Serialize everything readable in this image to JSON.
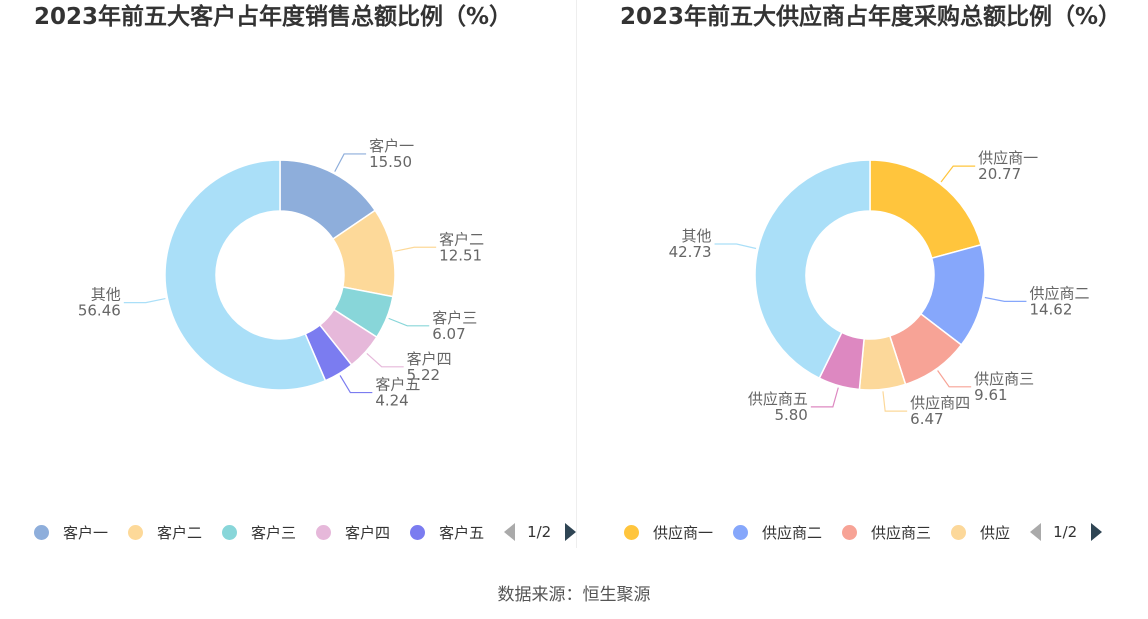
{
  "source_note": "数据来源：恒生聚源",
  "chart_data": [
    {
      "type": "pie",
      "subtype": "donut",
      "title": "2023年前五大客户占年度销售总额比例（%）",
      "categories": [
        "客户一",
        "客户二",
        "客户三",
        "客户四",
        "客户五",
        "其他"
      ],
      "values": [
        15.5,
        12.51,
        6.07,
        5.22,
        4.24,
        56.46
      ],
      "value_labels": [
        "15.50",
        "12.51",
        "6.07",
        "5.22",
        "4.24",
        "56.46"
      ],
      "colors": [
        "#8eaedb",
        "#fdd999",
        "#88d6d9",
        "#e6b8da",
        "#7b7cf0",
        "#aadff8"
      ],
      "legend": {
        "position": "bottom",
        "visible_items": [
          "客户一",
          "客户二",
          "客户三",
          "客户四",
          "客户五"
        ],
        "visible_colors": [
          "#8eaedb",
          "#fdd999",
          "#88d6d9",
          "#e6b8da",
          "#7b7cf0"
        ],
        "page_text": "1/2"
      }
    },
    {
      "type": "pie",
      "subtype": "donut",
      "title": "2023年前五大供应商占年度采购总额比例（%）",
      "categories": [
        "供应商一",
        "供应商二",
        "供应商三",
        "供应商四",
        "供应商五",
        "其他"
      ],
      "values": [
        20.77,
        14.62,
        9.61,
        6.47,
        5.8,
        42.73
      ],
      "value_labels": [
        "20.77",
        "14.62",
        "9.61",
        "6.47",
        "5.80",
        "42.73"
      ],
      "colors": [
        "#ffc53d",
        "#86a7fb",
        "#f7a396",
        "#fcd89a",
        "#dd88c1",
        "#aadff8"
      ],
      "legend": {
        "position": "bottom",
        "visible_items": [
          "供应商一",
          "供应商二",
          "供应商三",
          "供应"
        ],
        "visible_colors": [
          "#ffc53d",
          "#86a7fb",
          "#f7a396",
          "#fcd89a"
        ],
        "page_text": "1/2"
      }
    }
  ]
}
